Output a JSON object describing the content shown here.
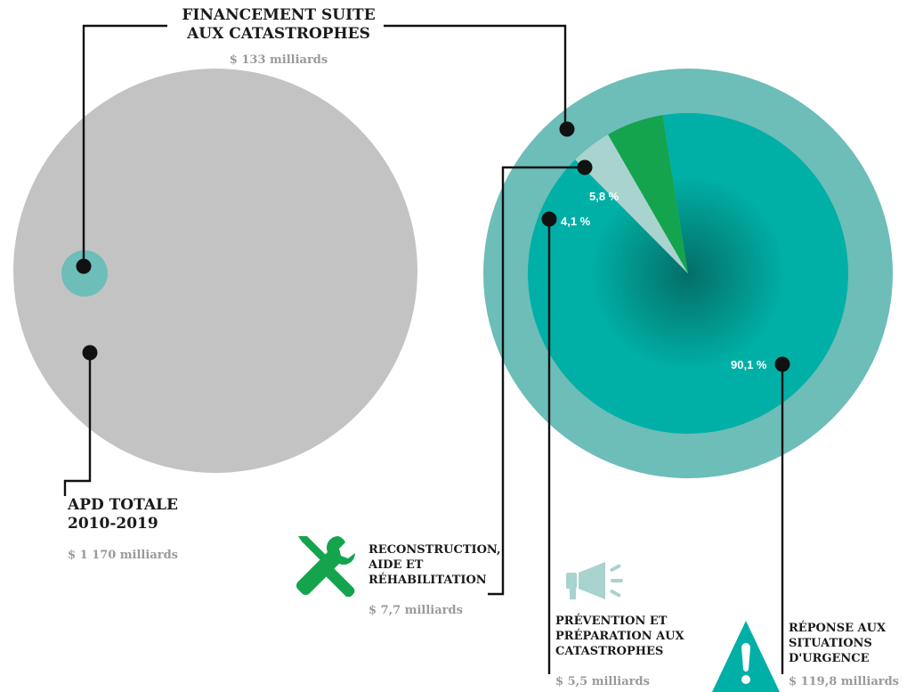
{
  "chart_data": {
    "type": "pie",
    "total_oda": {
      "label_lines": [
        "APD TOTALE",
        "2010-2019"
      ],
      "amount": "$ 1 170 milliards",
      "value": 1170,
      "unit": "milliards $"
    },
    "disaster_financing": {
      "label_lines": [
        "FINANCEMENT SUITE",
        "AUX CATASTROPHES"
      ],
      "amount": "$ 133 milliards",
      "value": 133,
      "unit": "milliards $"
    },
    "breakdown": [
      {
        "id": "reconstruction",
        "percent_label": "5,8 %",
        "percent": 5.8,
        "label_lines": [
          "RECONSTRUCTION,",
          "AIDE ET",
          "RÉHABILITATION"
        ],
        "amount": "$ 7,7 milliards",
        "value": 7.7,
        "color": "#14a44d",
        "icon": "wrench-screwdriver-icon"
      },
      {
        "id": "prevention",
        "percent_label": "4,1 %",
        "percent": 4.1,
        "label_lines": [
          "PRÉVENTION ET",
          "PRÉPARATION AUX",
          "CATASTROPHES"
        ],
        "amount": "$ 5,5 milliards",
        "value": 5.5,
        "color": "#a8d3cf",
        "icon": "megaphone-icon"
      },
      {
        "id": "response",
        "percent_label": "90,1 %",
        "percent": 90.1,
        "label_lines": [
          "RÉPONSE AUX",
          "SITUATIONS",
          "D'URGENCE"
        ],
        "amount": "$ 119,8 milliards",
        "value": 119.8,
        "color": "#00b0a6",
        "icon": "warning-triangle-icon"
      }
    ],
    "colors": {
      "total_circle": "#c3c3c3",
      "disaster_circle": "#6dbdb9",
      "response": "#00b0a6",
      "response_center": "#046e68",
      "reconstruction": "#14a44d",
      "prevention": "#a8d3cf",
      "leader": "#111111",
      "amount_text": "#9a9a9a",
      "megaphone": "#a8d3cf",
      "warning": "#00b0a6"
    }
  }
}
